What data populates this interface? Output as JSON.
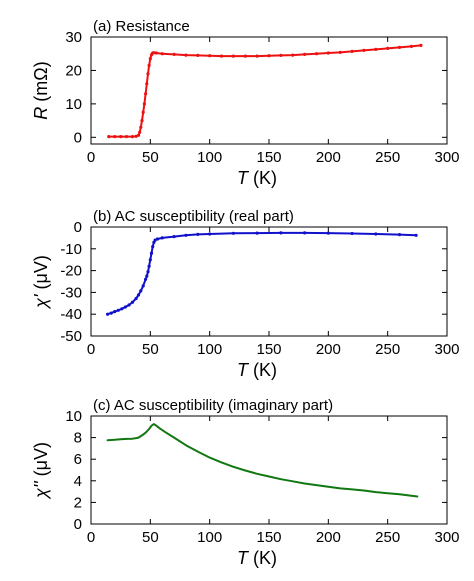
{
  "chart_data": [
    {
      "type": "line",
      "title": "(a) Resistance",
      "xlabel": {
        "symbol": "T",
        "unit": " (K)"
      },
      "ylabel": {
        "symbol": "R",
        "unit": " (mΩ)"
      },
      "xlim": [
        0,
        300
      ],
      "ylim": [
        -2,
        30
      ],
      "xticks": [
        0,
        50,
        100,
        150,
        200,
        250,
        300
      ],
      "yticks": [
        0,
        10,
        20,
        30
      ],
      "grid": false,
      "legend": "none",
      "markers": true,
      "series": [
        {
          "color": "#ee1111",
          "x": [
            15,
            20,
            25,
            30,
            35,
            38,
            40,
            41,
            42,
            43,
            44,
            45,
            46,
            47,
            48,
            49,
            50,
            51,
            52,
            53,
            55,
            60,
            70,
            80,
            90,
            100,
            110,
            120,
            130,
            140,
            150,
            160,
            170,
            180,
            190,
            200,
            210,
            220,
            230,
            240,
            250,
            260,
            270,
            278
          ],
          "y": [
            0.2,
            0.2,
            0.2,
            0.2,
            0.2,
            0.3,
            0.6,
            1.5,
            3,
            5,
            7.5,
            10,
            13,
            16,
            19,
            21.5,
            23.5,
            24.7,
            25.2,
            25.3,
            25.2,
            25.0,
            24.8,
            24.6,
            24.5,
            24.4,
            24.3,
            24.3,
            24.3,
            24.3,
            24.4,
            24.5,
            24.6,
            24.8,
            25.0,
            25.2,
            25.4,
            25.7,
            26.0,
            26.3,
            26.6,
            26.9,
            27.2,
            27.5
          ]
        }
      ]
    },
    {
      "type": "line",
      "title": "(b) AC susceptibility (real part)",
      "xlabel": {
        "symbol": "T",
        "unit": " (K)"
      },
      "ylabel": {
        "symbol": "χ'",
        "unit": " (μV)"
      },
      "xlim": [
        0,
        300
      ],
      "ylim": [
        -50,
        0
      ],
      "xticks": [
        0,
        50,
        100,
        150,
        200,
        250,
        300
      ],
      "yticks": [
        -50,
        -40,
        -30,
        -20,
        -10,
        0
      ],
      "grid": false,
      "legend": "none",
      "markers": true,
      "series": [
        {
          "color": "#1111cc",
          "x": [
            14,
            17,
            20,
            23,
            26,
            29,
            32,
            35,
            38,
            40,
            42,
            44,
            46,
            47,
            48,
            49,
            50,
            51,
            52,
            53,
            54,
            56,
            60,
            70,
            80,
            90,
            100,
            120,
            140,
            160,
            180,
            200,
            220,
            240,
            260,
            274
          ],
          "y": [
            -40,
            -39.5,
            -38.8,
            -38.2,
            -37.5,
            -36.7,
            -35.8,
            -34.5,
            -32.8,
            -31.2,
            -29.3,
            -27,
            -24,
            -22.5,
            -20.5,
            -18,
            -15,
            -12,
            -9,
            -7,
            -6,
            -5.5,
            -5,
            -4.4,
            -3.8,
            -3.4,
            -3.2,
            -2.9,
            -2.8,
            -2.7,
            -2.7,
            -2.8,
            -3.0,
            -3.2,
            -3.5,
            -3.8
          ]
        }
      ]
    },
    {
      "type": "line",
      "title": "(c) AC susceptibility (imaginary part)",
      "xlabel": {
        "symbol": "T",
        "unit": " (K)"
      },
      "ylabel": {
        "symbol": "χ''",
        "unit": " (μV)"
      },
      "xlim": [
        0,
        300
      ],
      "ylim": [
        0,
        10
      ],
      "xticks": [
        0,
        50,
        100,
        150,
        200,
        250,
        300
      ],
      "yticks": [
        0,
        2,
        4,
        6,
        8,
        10
      ],
      "grid": false,
      "legend": "none",
      "markers": false,
      "series": [
        {
          "color": "#117711",
          "x": [
            14,
            20,
            25,
            30,
            35,
            38,
            40,
            43,
            46,
            49,
            51,
            53,
            55,
            58,
            62,
            70,
            80,
            90,
            100,
            110,
            120,
            130,
            140,
            150,
            160,
            170,
            180,
            190,
            200,
            210,
            220,
            230,
            240,
            250,
            260,
            275
          ],
          "y": [
            7.75,
            7.8,
            7.85,
            7.88,
            7.9,
            7.95,
            8.0,
            8.2,
            8.45,
            8.8,
            9.1,
            9.25,
            9.1,
            8.85,
            8.55,
            8.0,
            7.3,
            6.7,
            6.15,
            5.7,
            5.3,
            4.95,
            4.65,
            4.4,
            4.15,
            3.95,
            3.75,
            3.6,
            3.45,
            3.3,
            3.2,
            3.1,
            2.95,
            2.85,
            2.75,
            2.55
          ]
        }
      ]
    }
  ]
}
